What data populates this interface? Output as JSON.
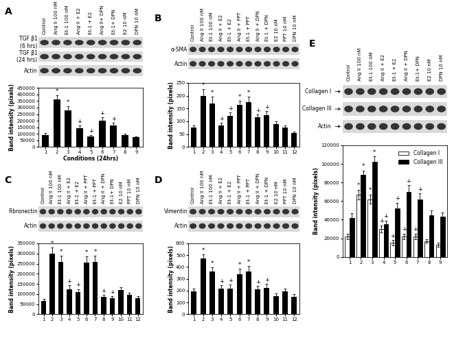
{
  "chart_data": [
    {
      "type": "bar",
      "panel": "A",
      "lane_labels": [
        "Control",
        "Ang II 100 nM",
        "Et-1 100 nM",
        "Ang II + E2",
        "Et-1 + E2",
        "Ang II+ DPN",
        "Et-1+ DPN",
        "E2 10 nM",
        "DPN 10 nM"
      ],
      "blot_rows": [
        "TGF β1\n(6 hrs)",
        "TGF β1\n(24 hrs)",
        "Actin"
      ],
      "ylabel": "Band intensity (pixels)",
      "xlabel": "Conditions (24hrs)",
      "categories": [
        "1",
        "2",
        "3",
        "4",
        "5",
        "6",
        "7",
        "8",
        "9"
      ],
      "values": [
        90000,
        360000,
        280000,
        145000,
        80000,
        200000,
        165000,
        90000,
        75000
      ],
      "errors": [
        15000,
        35000,
        30000,
        20000,
        10000,
        25000,
        20000,
        10000,
        8000
      ],
      "annotations": [
        null,
        "*",
        "*",
        "+",
        "+",
        "+",
        "+",
        null,
        null
      ],
      "color": "#000000",
      "ylim": [
        0,
        450000
      ],
      "yticks": [
        0,
        50000,
        100000,
        150000,
        200000,
        250000,
        300000,
        350000,
        400000,
        450000
      ]
    },
    {
      "type": "bar",
      "panel": "B",
      "lane_labels": [
        "Control",
        "Ang II 100 nM",
        "Et-1 100 nM",
        "Ang II + E2",
        "Et-1 + E2",
        "Ang II + PPT",
        "Et-1 + PPT",
        "Ang II + DPN",
        "Et-1 + DPN",
        "E2 10 nM",
        "PPT 10 nM",
        "DPN 10 nM"
      ],
      "blot_rows": [
        "α-SMA",
        "Actin"
      ],
      "ylabel": "Band intensity (pixels)",
      "categories": [
        "1",
        "2",
        "3",
        "4",
        "5",
        "6",
        "7",
        "8",
        "9",
        "10",
        "11",
        "12"
      ],
      "values": [
        75,
        200,
        170,
        85,
        120,
        165,
        175,
        115,
        125,
        90,
        75,
        55
      ],
      "errors": [
        8,
        25,
        25,
        10,
        15,
        15,
        20,
        12,
        15,
        10,
        8,
        6
      ],
      "annotations": [
        null,
        "*",
        "*",
        "+",
        "+",
        "*",
        "*",
        "+",
        "+",
        null,
        null,
        null
      ],
      "color": "#000000",
      "ylim": [
        0,
        250
      ],
      "yticks": [
        0,
        50,
        100,
        150,
        200,
        250
      ]
    },
    {
      "type": "bar",
      "panel": "C",
      "lane_labels": [
        "Control",
        "Ang II 100 nM",
        "Et-1 100 nM",
        "Ang II + E2",
        "Et-1 + E2",
        "Ang II + PPT",
        "Et-1 + PPT",
        "Ang II + DPN",
        "Et-1+ DPN",
        "E2 10 nM",
        "PPT 10 nM",
        "DPN 10 nM"
      ],
      "blot_rows": [
        "Fibronectin",
        "Actin"
      ],
      "ylabel": "Band intensity (pixels)",
      "categories": [
        "1",
        "2",
        "3",
        "4",
        "5",
        "6",
        "7",
        "8",
        "9",
        "10",
        "11",
        "12"
      ],
      "values": [
        65000,
        300000,
        260000,
        125000,
        110000,
        255000,
        260000,
        85000,
        80000,
        120000,
        95000,
        80000
      ],
      "errors": [
        10000,
        30000,
        30000,
        20000,
        15000,
        30000,
        30000,
        10000,
        10000,
        15000,
        10000,
        10000
      ],
      "annotations": [
        null,
        "*",
        "*",
        "+",
        "+",
        "*",
        "*",
        "+",
        "+",
        null,
        null,
        null
      ],
      "color": "#000000",
      "ylim": [
        0,
        350000
      ],
      "yticks": [
        0,
        50000,
        100000,
        150000,
        200000,
        250000,
        300000,
        350000
      ]
    },
    {
      "type": "bar",
      "panel": "D",
      "lane_labels": [
        "Control",
        "Ang II 100 nM",
        "Et-1 100 nM",
        "Ang II + E2",
        "Et-1 + E2",
        "Ang II + PPT",
        "Et-1 + PPT",
        "Ang II + DPN",
        "Et-1 + DPN",
        "E2 10 nM",
        "PPT 10 nM",
        "DPN 10 nM"
      ],
      "blot_rows": [
        "Vimentin",
        "Actin"
      ],
      "ylabel": "Band intensity (pixels)",
      "categories": [
        "1",
        "2",
        "3",
        "4",
        "5",
        "6",
        "7",
        "8",
        "9",
        "10",
        "11",
        "12"
      ],
      "values": [
        195,
        470,
        365,
        215,
        215,
        340,
        365,
        210,
        225,
        155,
        195,
        145
      ],
      "errors": [
        25,
        35,
        30,
        30,
        35,
        45,
        45,
        30,
        30,
        20,
        25,
        25
      ],
      "annotations": [
        null,
        "*",
        "*",
        "+",
        "+",
        "*",
        "*",
        "+",
        "+",
        null,
        null,
        null
      ],
      "color": "#000000",
      "ylim": [
        0,
        600
      ],
      "yticks": [
        0,
        100,
        200,
        300,
        400,
        500,
        600
      ]
    },
    {
      "type": "bar",
      "panel": "E",
      "lane_labels": [
        "Control",
        "Ang II 100 nM",
        "Et-1 100 nM",
        "Ang II + E2",
        "Et-1 + E2",
        "Ang II + DPN",
        "Et-1+ DPN",
        "E2 10 nM",
        "DPN 10 nM"
      ],
      "blot_rows": [
        "Collagen I",
        "Collagen III",
        "Actin"
      ],
      "ylabel": "Band intensity (pixels)",
      "categories": [
        "1",
        "2",
        "3",
        "4",
        "5",
        "6",
        "7",
        "8",
        "9"
      ],
      "series": [
        {
          "name": "Collagen I",
          "color": "#ffffff",
          "values": [
            22000,
            67000,
            62000,
            30000,
            15000,
            22000,
            22000,
            17000,
            13000
          ],
          "errors": [
            3000,
            5000,
            5000,
            4000,
            3000,
            3000,
            3000,
            2000,
            2000
          ],
          "annotations": [
            null,
            "*",
            "*",
            "+",
            "+",
            "+",
            "+",
            null,
            null
          ]
        },
        {
          "name": "Collagen III",
          "color": "#000000",
          "values": [
            42000,
            88000,
            102000,
            35000,
            52000,
            70000,
            62000,
            45000,
            43000
          ],
          "errors": [
            5000,
            5000,
            6000,
            4000,
            6000,
            7000,
            6000,
            5000,
            5000
          ],
          "annotations": [
            null,
            "*",
            "*",
            "+",
            "+",
            "+",
            "+",
            null,
            null
          ]
        }
      ],
      "legend": "upper right",
      "ylim": [
        0,
        120000
      ],
      "yticks": [
        0,
        20000,
        40000,
        60000,
        80000,
        100000,
        120000
      ]
    }
  ]
}
